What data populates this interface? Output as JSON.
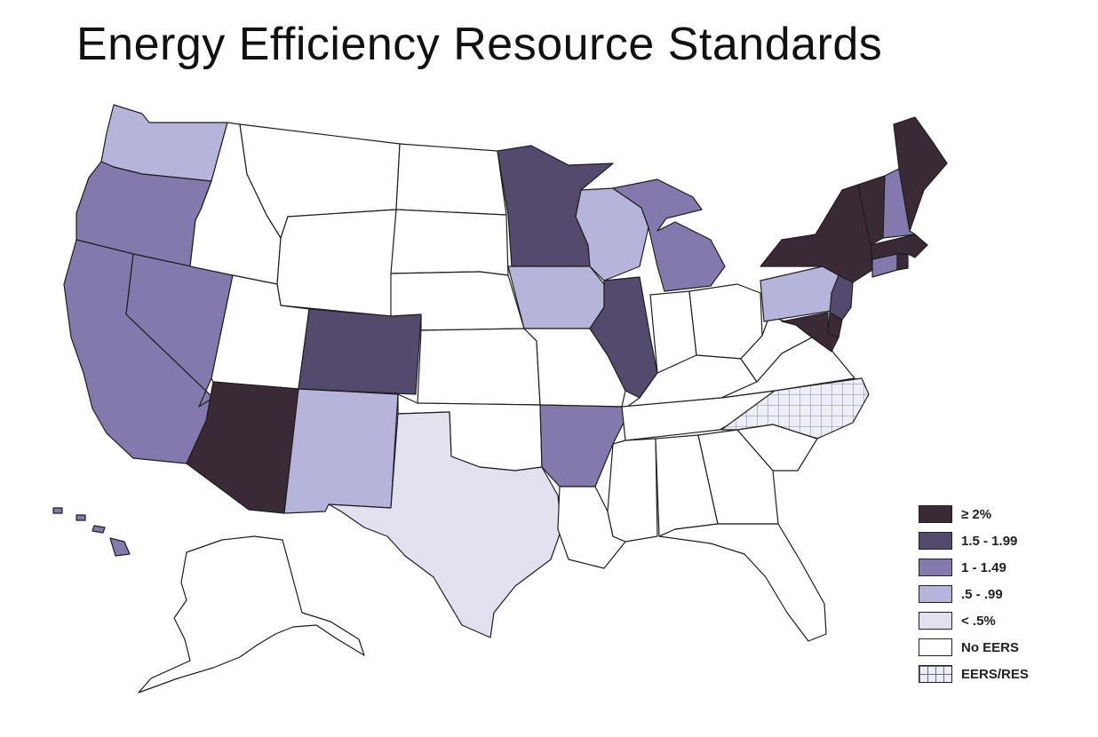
{
  "title": "Energy Efficiency Resource Standards",
  "colors": {
    "ge2": "#3a2a35",
    "c15": "#534a6e",
    "c10": "#8479ac",
    "c05": "#b7b4dc",
    "lt05": "#e3e1f0",
    "none": "#ffffff",
    "eersres": "#eeeef7",
    "border": "#1e1e1e"
  },
  "legend": {
    "items": [
      {
        "key": "ge2",
        "label": "≥ 2%",
        "icon": "swatch-darkest"
      },
      {
        "key": "c15",
        "label": "1.5 - 1.99",
        "icon": "swatch-dark"
      },
      {
        "key": "c10",
        "label": "1 - 1.49",
        "icon": "swatch-medium"
      },
      {
        "key": "c05",
        "label": ".5 - .99",
        "icon": "swatch-light"
      },
      {
        "key": "lt05",
        "label": "< .5%",
        "icon": "swatch-lightest"
      },
      {
        "key": "none",
        "label": "No EERS",
        "icon": "swatch-white"
      },
      {
        "key": "eersres",
        "label": "EERS/RES",
        "icon": "swatch-grid"
      }
    ]
  },
  "states": {
    "WA": "c05",
    "OR": "c10",
    "CA": "c10",
    "NV": "c10",
    "ID": "none",
    "MT": "none",
    "WY": "none",
    "UT": "none",
    "AZ": "ge2",
    "CO": "c15",
    "NM": "c05",
    "ND": "none",
    "SD": "none",
    "NE": "none",
    "KS": "none",
    "OK": "none",
    "TX": "lt05",
    "MN": "c15",
    "IA": "c05",
    "MO": "none",
    "AR": "c10",
    "LA": "none",
    "WI": "c05",
    "IL": "c15",
    "MI": "c10",
    "IN": "none",
    "OH": "none",
    "KY": "none",
    "TN": "none",
    "MS": "none",
    "AL": "none",
    "GA": "none",
    "FL": "none",
    "SC": "none",
    "NC": "eersres",
    "VA": "none",
    "WV": "none",
    "PA": "c05",
    "NY": "ge2",
    "VT": "ge2",
    "NH": "c10",
    "ME": "ge2",
    "MA": "ge2",
    "RI": "ge2",
    "CT": "c10",
    "NJ": "c15",
    "DE": "ge2",
    "MD": "ge2",
    "AK": "none",
    "HI": "c10"
  }
}
